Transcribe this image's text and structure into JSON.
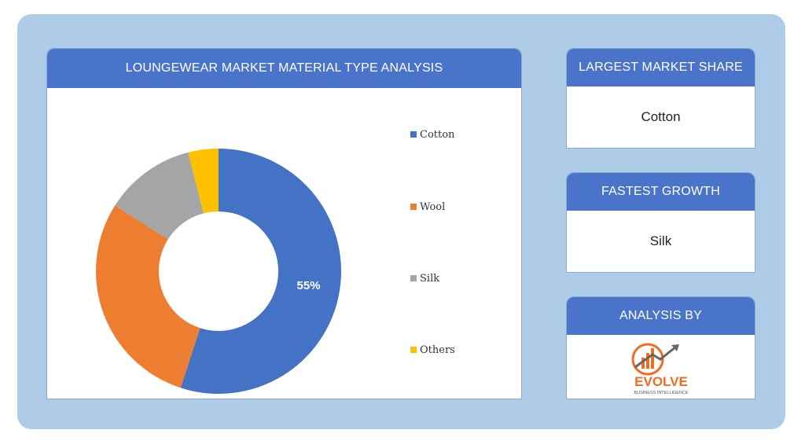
{
  "main_card": {
    "title": "LOUNGEWEAR MARKET MATERIAL TYPE ANALYSIS"
  },
  "side_cards": {
    "largest_share": {
      "title": "LARGEST MARKET SHARE",
      "value": "Cotton"
    },
    "fastest_growth": {
      "title": "FASTEST GROWTH",
      "value": "Silk"
    },
    "analysis_by": {
      "title": "ANALYSIS BY",
      "logo_text": "EVOLVE",
      "logo_tagline": "BUSINESS INTELLIGENCE"
    }
  },
  "colors": {
    "panel_bg": "#aecbe8",
    "header_bg": "#4a74c9",
    "cotton": "#4472c4",
    "wool": "#ed7d31",
    "silk": "#a5a5a5",
    "others": "#ffc000"
  },
  "chart_data": {
    "type": "pie",
    "variant": "donut",
    "title": "",
    "categories": [
      "Cotton",
      "Wool",
      "Silk",
      "Others"
    ],
    "values": [
      55,
      29,
      12,
      4
    ],
    "colors": [
      "#4472c4",
      "#ed7d31",
      "#a5a5a5",
      "#ffc000"
    ],
    "data_labels": [
      "55%",
      "",
      "",
      ""
    ],
    "legend_position": "right"
  }
}
